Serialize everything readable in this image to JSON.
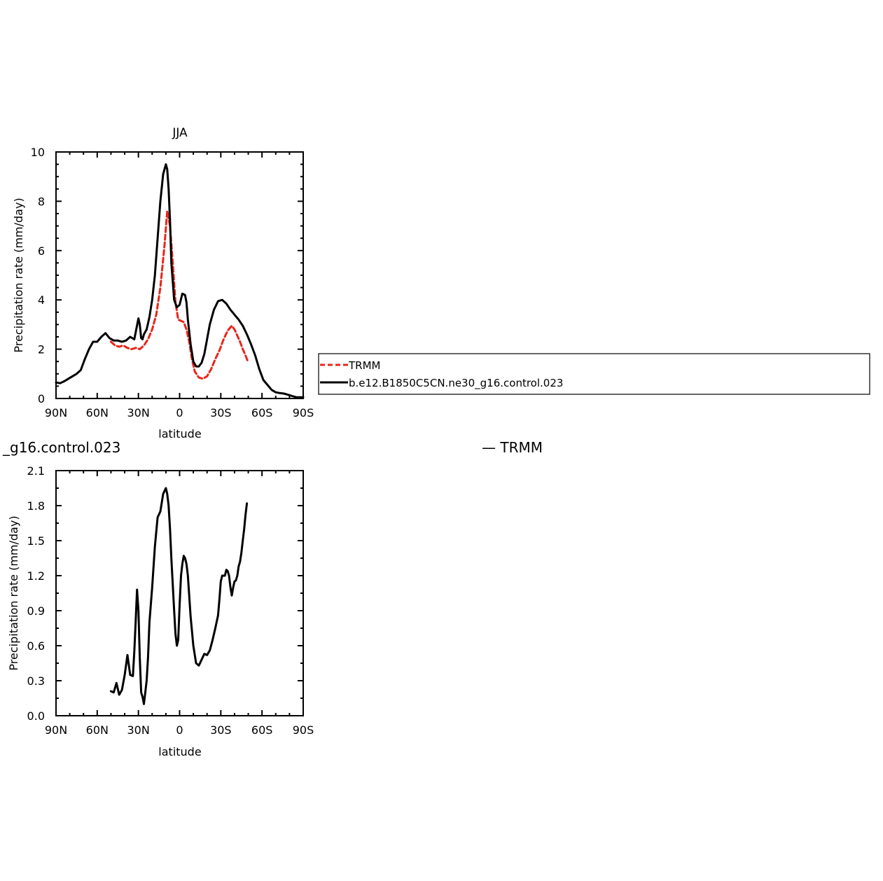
{
  "chart_data": [
    {
      "type": "line",
      "title": "JJA",
      "xlabel": "latitude",
      "ylabel": "Precipitation rate (mm/day)",
      "x_ticks": [
        "90N",
        "60N",
        "30N",
        "0",
        "30S",
        "60S",
        "90S"
      ],
      "x_tick_values": [
        90,
        60,
        30,
        0,
        -30,
        -60,
        -90
      ],
      "xlim": [
        90,
        -90
      ],
      "ylim": [
        0,
        10
      ],
      "y_ticks": [
        "0",
        "2",
        "4",
        "6",
        "8",
        "10"
      ],
      "y_tick_values": [
        0,
        2,
        4,
        6,
        8,
        10
      ],
      "legend": "right-box",
      "series": [
        {
          "name": "TRMM",
          "color": "#e8261c",
          "style": "dashed",
          "x": [
            50,
            47,
            44,
            41,
            38,
            35,
            32,
            29,
            26,
            23,
            20,
            17,
            14,
            11,
            9,
            7,
            5,
            3,
            1,
            -1,
            -3,
            -5,
            -7,
            -9,
            -11,
            -14,
            -17,
            -20,
            -23,
            -26,
            -29,
            -32,
            -35,
            -38,
            -40,
            -42,
            -44,
            -46,
            -48,
            -50
          ],
          "y": [
            2.3,
            2.15,
            2.1,
            2.15,
            2.05,
            2.0,
            2.05,
            2.0,
            2.15,
            2.4,
            2.8,
            3.4,
            4.5,
            6.2,
            7.6,
            7.0,
            5.5,
            3.9,
            3.2,
            3.15,
            3.1,
            2.8,
            2.3,
            1.6,
            1.1,
            0.85,
            0.8,
            0.9,
            1.2,
            1.6,
            1.95,
            2.4,
            2.75,
            2.95,
            2.8,
            2.55,
            2.3,
            2.0,
            1.75,
            1.45
          ]
        },
        {
          "name": "b.e12.B1850C5CN.ne30_g16.control.023",
          "color": "#000000",
          "style": "solid",
          "x": [
            90,
            87,
            84,
            81,
            78,
            75,
            72,
            69,
            66,
            63,
            60,
            57,
            54,
            51,
            48,
            45,
            42,
            39,
            36,
            33,
            30,
            29,
            28,
            27,
            26,
            24,
            22,
            20,
            18,
            16,
            14,
            12,
            10,
            9,
            8,
            7,
            6,
            4,
            2,
            0,
            -2,
            -4,
            -5,
            -6,
            -8,
            -10,
            -12,
            -14,
            -16,
            -18,
            -20,
            -22,
            -25,
            -28,
            -31,
            -34,
            -37,
            -40,
            -43,
            -46,
            -49,
            -52,
            -55,
            -58,
            -61,
            -64,
            -67,
            -70,
            -73,
            -76,
            -79,
            -82,
            -85,
            -88,
            -90
          ],
          "y": [
            0.65,
            0.62,
            0.7,
            0.8,
            0.9,
            1.0,
            1.15,
            1.6,
            2.0,
            2.3,
            2.3,
            2.5,
            2.65,
            2.45,
            2.35,
            2.35,
            2.3,
            2.35,
            2.5,
            2.4,
            3.25,
            3.0,
            2.45,
            2.4,
            2.6,
            2.8,
            3.3,
            4.0,
            5.0,
            6.5,
            8.0,
            9.1,
            9.5,
            9.3,
            8.5,
            7.2,
            5.5,
            4.0,
            3.7,
            3.8,
            4.25,
            4.2,
            3.9,
            3.2,
            2.2,
            1.5,
            1.3,
            1.3,
            1.45,
            1.8,
            2.4,
            3.0,
            3.6,
            3.95,
            4.0,
            3.85,
            3.6,
            3.4,
            3.2,
            2.95,
            2.6,
            2.2,
            1.75,
            1.2,
            0.75,
            0.55,
            0.35,
            0.25,
            0.22,
            0.2,
            0.15,
            0.1,
            0.05,
            0.05,
            0.05
          ]
        }
      ]
    },
    {
      "type": "line",
      "title": "_g16.control.023",
      "title_right": "— TRMM",
      "xlabel": "latitude",
      "ylabel": "Precipitation rate (mm/day)",
      "x_ticks": [
        "90N",
        "60N",
        "30N",
        "0",
        "30S",
        "60S",
        "90S"
      ],
      "x_tick_values": [
        90,
        60,
        30,
        0,
        -30,
        -60,
        -90
      ],
      "xlim": [
        90,
        -90
      ],
      "ylim": [
        0,
        2.1
      ],
      "y_ticks": [
        "0.0",
        "0.3",
        "0.6",
        "0.9",
        "1.2",
        "1.5",
        "1.8",
        "2.1"
      ],
      "y_tick_values": [
        0,
        0.3,
        0.6,
        0.9,
        1.2,
        1.5,
        1.8,
        2.1
      ],
      "series": [
        {
          "color": "#000000",
          "style": "solid",
          "x": [
            50,
            48,
            46,
            44,
            42,
            40,
            38,
            36,
            34,
            33,
            32,
            31,
            30,
            29,
            28,
            27,
            26,
            25,
            24,
            23,
            22,
            20,
            18,
            16,
            14,
            12,
            10,
            9,
            8,
            7,
            6,
            4,
            3,
            2,
            1,
            0,
            -1,
            -2,
            -3,
            -4,
            -5,
            -6,
            -8,
            -10,
            -12,
            -14,
            -16,
            -18,
            -20,
            -22,
            -24,
            -26,
            -28,
            -29,
            -30,
            -31,
            -32,
            -33,
            -34,
            -35,
            -36,
            -37,
            -38,
            -39,
            -40,
            -41,
            -42,
            -43,
            -44,
            -45,
            -46,
            -47,
            -48,
            -49
          ],
          "y": [
            0.21,
            0.2,
            0.28,
            0.18,
            0.22,
            0.35,
            0.52,
            0.35,
            0.34,
            0.55,
            0.8,
            1.08,
            0.9,
            0.5,
            0.2,
            0.16,
            0.1,
            0.2,
            0.3,
            0.5,
            0.8,
            1.1,
            1.45,
            1.7,
            1.75,
            1.9,
            1.95,
            1.9,
            1.8,
            1.6,
            1.35,
            0.9,
            0.7,
            0.6,
            0.65,
            0.95,
            1.2,
            1.3,
            1.37,
            1.35,
            1.3,
            1.2,
            0.85,
            0.6,
            0.45,
            0.43,
            0.48,
            0.53,
            0.52,
            0.56,
            0.65,
            0.75,
            0.86,
            1.0,
            1.15,
            1.2,
            1.2,
            1.2,
            1.25,
            1.24,
            1.2,
            1.1,
            1.03,
            1.1,
            1.15,
            1.16,
            1.2,
            1.28,
            1.32,
            1.4,
            1.5,
            1.6,
            1.72,
            1.82
          ]
        }
      ]
    }
  ]
}
